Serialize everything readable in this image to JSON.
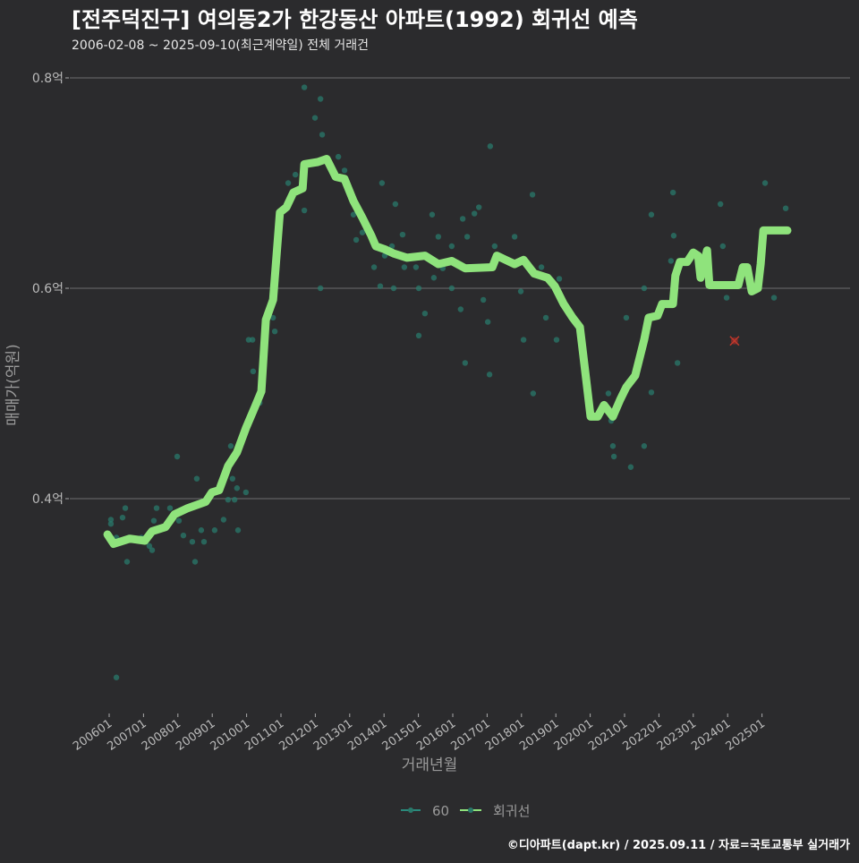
{
  "chart_data": {
    "type": "scatter",
    "title": "[전주덕진구] 여의동2가 한강동산 아파트(1992) 회귀선 예측",
    "subtitle": "2006-02-08 ~ 2025-09-10(최근계약일) 전체 거래건",
    "xlabel": "거래년월",
    "ylabel": "매매가(억원)",
    "ylim": [
      0.2,
      0.8
    ],
    "yticks": [
      {
        "value": 0.8,
        "label": "0.8억"
      },
      {
        "value": 0.6,
        "label": "0.6억"
      },
      {
        "value": 0.4,
        "label": "0.4억"
      }
    ],
    "xticks": [
      "200601",
      "200701",
      "200801",
      "200901",
      "201001",
      "201101",
      "201201",
      "201301",
      "201401",
      "201501",
      "201601",
      "201701",
      "201801",
      "201901",
      "202001",
      "202101",
      "202201",
      "202301",
      "202401",
      "202501"
    ],
    "grid": true,
    "legend_position": "bottom",
    "legend": [
      {
        "name": "60",
        "color": "#2a8a7c"
      },
      {
        "name": "회귀선",
        "color": "#8fe37c"
      }
    ],
    "colors": {
      "background": "#2b2b2d",
      "points": "#2a7a6b",
      "line": "#8fe37c",
      "outlier": "#c0392b",
      "grid": "#6e6e70"
    },
    "series": [
      {
        "name": "60",
        "type": "scatter",
        "points": [
          [
            2006.05,
            0.38
          ],
          [
            2006.05,
            0.376
          ],
          [
            2006.21,
            0.363
          ],
          [
            2006.39,
            0.382
          ],
          [
            2006.47,
            0.391
          ],
          [
            2006.52,
            0.34
          ],
          [
            2006.94,
            0.363
          ],
          [
            2007.17,
            0.355
          ],
          [
            2007.25,
            0.351
          ],
          [
            2007.3,
            0.379
          ],
          [
            2007.38,
            0.391
          ],
          [
            2007.64,
            0.372
          ],
          [
            2007.77,
            0.391
          ],
          [
            2007.98,
            0.44
          ],
          [
            2008.03,
            0.379
          ],
          [
            2008.16,
            0.365
          ],
          [
            2008.42,
            0.359
          ],
          [
            2008.5,
            0.34
          ],
          [
            2008.55,
            0.419
          ],
          [
            2008.68,
            0.37
          ],
          [
            2008.76,
            0.359
          ],
          [
            2009.07,
            0.37
          ],
          [
            2009.33,
            0.38
          ],
          [
            2009.46,
            0.399
          ],
          [
            2009.54,
            0.45
          ],
          [
            2009.59,
            0.419
          ],
          [
            2009.65,
            0.399
          ],
          [
            2009.72,
            0.41
          ],
          [
            2009.75,
            0.37
          ],
          [
            2009.98,
            0.406
          ],
          [
            2010.06,
            0.551
          ],
          [
            2010.17,
            0.551
          ],
          [
            2010.19,
            0.521
          ],
          [
            2010.38,
            0.491
          ],
          [
            2010.77,
            0.572
          ],
          [
            2010.82,
            0.559
          ],
          [
            2011.21,
            0.7
          ],
          [
            2011.42,
            0.708
          ],
          [
            2011.68,
            0.674
          ],
          [
            2011.68,
            0.791
          ],
          [
            2011.99,
            0.762
          ],
          [
            2012.15,
            0.78
          ],
          [
            2012.2,
            0.746
          ],
          [
            2012.15,
            0.6
          ],
          [
            2012.33,
            0.721
          ],
          [
            2012.67,
            0.725
          ],
          [
            2012.85,
            0.712
          ],
          [
            2013.11,
            0.67
          ],
          [
            2013.19,
            0.646
          ],
          [
            2013.37,
            0.653
          ],
          [
            2013.71,
            0.62
          ],
          [
            2013.89,
            0.602
          ],
          [
            2013.94,
            0.7
          ],
          [
            2014.02,
            0.631
          ],
          [
            2014.23,
            0.64
          ],
          [
            2014.33,
            0.68
          ],
          [
            2014.28,
            0.6
          ],
          [
            2014.54,
            0.651
          ],
          [
            2014.59,
            0.62
          ],
          [
            2014.93,
            0.62
          ],
          [
            2015.01,
            0.6
          ],
          [
            2015.01,
            0.555
          ],
          [
            2015.19,
            0.576
          ],
          [
            2015.4,
            0.67
          ],
          [
            2015.45,
            0.61
          ],
          [
            2015.58,
            0.649
          ],
          [
            2015.71,
            0.619
          ],
          [
            2015.97,
            0.64
          ],
          [
            2015.97,
            0.6
          ],
          [
            2016.23,
            0.58
          ],
          [
            2016.29,
            0.666
          ],
          [
            2016.36,
            0.529
          ],
          [
            2016.42,
            0.649
          ],
          [
            2016.63,
            0.671
          ],
          [
            2016.76,
            0.677
          ],
          [
            2016.89,
            0.589
          ],
          [
            2017.02,
            0.568
          ],
          [
            2017.07,
            0.518
          ],
          [
            2017.09,
            0.735
          ],
          [
            2017.22,
            0.64
          ],
          [
            2017.8,
            0.649
          ],
          [
            2017.98,
            0.597
          ],
          [
            2018.06,
            0.551
          ],
          [
            2018.32,
            0.689
          ],
          [
            2018.34,
            0.5
          ],
          [
            2018.58,
            0.62
          ],
          [
            2018.71,
            0.572
          ],
          [
            2019.02,
            0.551
          ],
          [
            2019.1,
            0.609
          ],
          [
            2020.53,
            0.5
          ],
          [
            2020.61,
            0.474
          ],
          [
            2020.66,
            0.45
          ],
          [
            2020.69,
            0.44
          ],
          [
            2021.05,
            0.572
          ],
          [
            2021.18,
            0.43
          ],
          [
            2021.57,
            0.45
          ],
          [
            2021.57,
            0.6
          ],
          [
            2021.78,
            0.67
          ],
          [
            2021.78,
            0.501
          ],
          [
            2022.41,
            0.691
          ],
          [
            2022.43,
            0.65
          ],
          [
            2022.35,
            0.626
          ],
          [
            2022.54,
            0.529
          ],
          [
            2023.79,
            0.68
          ],
          [
            2023.86,
            0.64
          ],
          [
            2023.97,
            0.591
          ],
          [
            2025.09,
            0.7
          ],
          [
            2025.35,
            0.591
          ],
          [
            2025.69,
            0.676
          ],
          [
            2006.21,
            0.23
          ]
        ]
      },
      {
        "name": "회귀선",
        "type": "line",
        "points": [
          [
            2005.95,
            0.366
          ],
          [
            2006.13,
            0.357
          ],
          [
            2006.6,
            0.362
          ],
          [
            2007.04,
            0.36
          ],
          [
            2007.25,
            0.369
          ],
          [
            2007.64,
            0.373
          ],
          [
            2007.9,
            0.385
          ],
          [
            2008.29,
            0.391
          ],
          [
            2008.81,
            0.397
          ],
          [
            2008.99,
            0.406
          ],
          [
            2009.2,
            0.408
          ],
          [
            2009.46,
            0.431
          ],
          [
            2009.72,
            0.444
          ],
          [
            2009.98,
            0.467
          ],
          [
            2010.24,
            0.487
          ],
          [
            2010.43,
            0.502
          ],
          [
            2010.56,
            0.57
          ],
          [
            2010.77,
            0.589
          ],
          [
            2010.97,
            0.672
          ],
          [
            2011.16,
            0.677
          ],
          [
            2011.36,
            0.691
          ],
          [
            2011.63,
            0.695
          ],
          [
            2011.68,
            0.718
          ],
          [
            2012.07,
            0.72
          ],
          [
            2012.33,
            0.723
          ],
          [
            2012.59,
            0.706
          ],
          [
            2012.85,
            0.704
          ],
          [
            2013.11,
            0.683
          ],
          [
            2013.37,
            0.667
          ],
          [
            2013.63,
            0.65
          ],
          [
            2013.76,
            0.64
          ],
          [
            2014.02,
            0.637
          ],
          [
            2014.28,
            0.633
          ],
          [
            2014.67,
            0.629
          ],
          [
            2015.19,
            0.631
          ],
          [
            2015.58,
            0.623
          ],
          [
            2015.97,
            0.626
          ],
          [
            2016.36,
            0.619
          ],
          [
            2017.15,
            0.62
          ],
          [
            2017.28,
            0.631
          ],
          [
            2017.54,
            0.627
          ],
          [
            2017.8,
            0.623
          ],
          [
            2018.06,
            0.627
          ],
          [
            2018.37,
            0.614
          ],
          [
            2018.76,
            0.61
          ],
          [
            2018.97,
            0.602
          ],
          [
            2019.23,
            0.585
          ],
          [
            2019.49,
            0.572
          ],
          [
            2019.7,
            0.563
          ],
          [
            2019.88,
            0.514
          ],
          [
            2020.01,
            0.478
          ],
          [
            2020.22,
            0.478
          ],
          [
            2020.4,
            0.489
          ],
          [
            2020.66,
            0.478
          ],
          [
            2020.87,
            0.494
          ],
          [
            2021.05,
            0.506
          ],
          [
            2021.31,
            0.517
          ],
          [
            2021.57,
            0.551
          ],
          [
            2021.7,
            0.572
          ],
          [
            2021.96,
            0.574
          ],
          [
            2022.09,
            0.585
          ],
          [
            2022.41,
            0.585
          ],
          [
            2022.48,
            0.612
          ],
          [
            2022.61,
            0.625
          ],
          [
            2022.82,
            0.625
          ],
          [
            2023.0,
            0.634
          ],
          [
            2023.14,
            0.631
          ],
          [
            2023.21,
            0.61
          ],
          [
            2023.4,
            0.636
          ],
          [
            2023.47,
            0.603
          ],
          [
            2024.31,
            0.603
          ],
          [
            2024.44,
            0.62
          ],
          [
            2024.57,
            0.62
          ],
          [
            2024.7,
            0.597
          ],
          [
            2024.88,
            0.6
          ],
          [
            2024.96,
            0.623
          ],
          [
            2025.04,
            0.655
          ],
          [
            2025.74,
            0.655
          ]
        ]
      },
      {
        "name": "predicted-marker",
        "type": "marker",
        "points": [
          [
            2024.2,
            0.55
          ]
        ]
      }
    ]
  },
  "footer": {
    "credit": "©디아파트(dapt.kr) / 2025.09.11 / 자료=국토교통부 실거래가"
  }
}
